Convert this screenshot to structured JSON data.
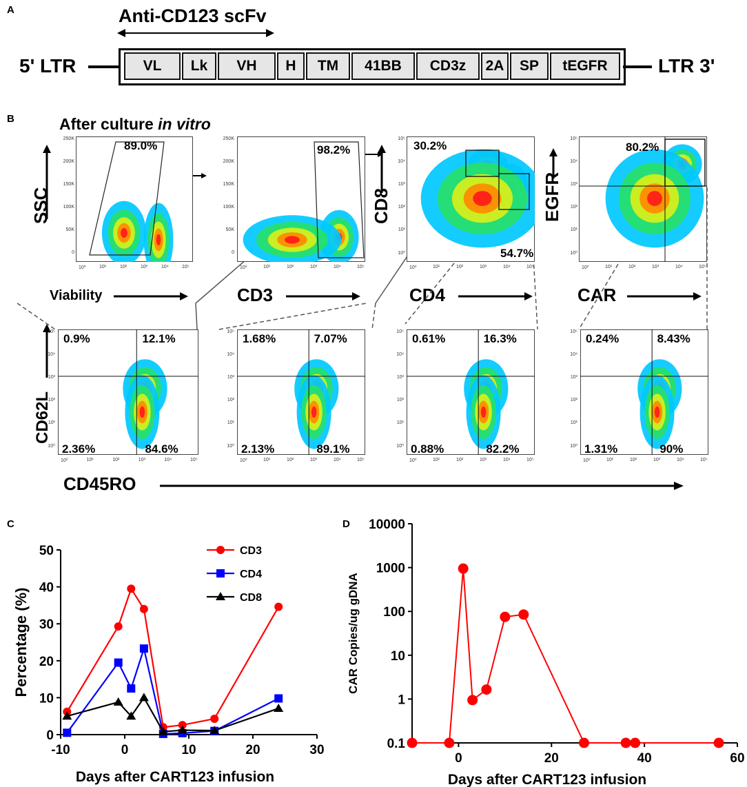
{
  "panelA": {
    "letter": "A",
    "scfv_label": "Anti-CD123 scFv",
    "ltr5": "5' LTR",
    "ltr3": "LTR 3'",
    "segments": [
      "VL",
      "Lk",
      "VH",
      "H",
      "TM",
      "41BB",
      "CD3z",
      "2A",
      "SP",
      "tEGFR"
    ]
  },
  "panelB": {
    "letter": "B",
    "title_prefix": "After culture ",
    "title_italic": "in vitro",
    "top_plots": [
      {
        "ylabel": "SSC",
        "xlabel": "Viability",
        "gate": "89.0%"
      },
      {
        "ylabel": "",
        "xlabel": "CD3",
        "gate": "98.2%"
      },
      {
        "ylabel": "CD8",
        "xlabel": "CD4",
        "gate_tl": "30.2%",
        "gate_br": "54.7%"
      },
      {
        "ylabel": "EGFR",
        "xlabel": "CAR",
        "gate": "80.2%"
      }
    ],
    "bottom_ylabel": "CD62L",
    "bottom_xlabel": "CD45RO",
    "bottom_plots": [
      {
        "tl": "0.9%",
        "tr": "12.1%",
        "bl": "2.36%",
        "br": "84.6%"
      },
      {
        "tl": "1.68%",
        "tr": "7.07%",
        "bl": "2.13%",
        "br": "89.1%"
      },
      {
        "tl": "0.61%",
        "tr": "16.3%",
        "bl": "0.88%",
        "br": "82.2%"
      },
      {
        "tl": "0.24%",
        "tr": "8.43%",
        "bl": "1.31%",
        "br": "90%"
      }
    ],
    "ssc_ticks": [
      "250K",
      "200K",
      "150K",
      "100K",
      "50K",
      "0"
    ],
    "log_ticks": [
      "10⁰",
      "10¹",
      "10²",
      "10³",
      "10⁴",
      "10⁵"
    ]
  },
  "panelC": {
    "letter": "C"
  },
  "panelD": {
    "letter": "D"
  },
  "chart_data": [
    {
      "type": "line",
      "panel": "C",
      "xlabel": "Days after CART123 infusion",
      "ylabel": "Percentage (%)",
      "xlim": [
        -10,
        30
      ],
      "ylim": [
        0,
        50
      ],
      "xticks": [
        -10,
        0,
        10,
        20,
        30
      ],
      "yticks": [
        0,
        10,
        20,
        30,
        40,
        50
      ],
      "legend_position": "top-right",
      "series": [
        {
          "name": "CD3",
          "color": "#ff0000",
          "marker": "circle",
          "x": [
            -9,
            -1,
            1,
            3,
            6,
            9,
            14,
            24
          ],
          "y": [
            6.2,
            29.3,
            39.5,
            34,
            2,
            2.6,
            4.3,
            34.6
          ]
        },
        {
          "name": "CD4",
          "color": "#0000ff",
          "marker": "square",
          "x": [
            -9,
            -1,
            1,
            3,
            6,
            9,
            14,
            24
          ],
          "y": [
            0.5,
            19.5,
            12.5,
            23.3,
            0.2,
            0.4,
            1,
            9.8
          ]
        },
        {
          "name": "CD8",
          "color": "#000000",
          "marker": "triangle",
          "x": [
            -9,
            -1,
            1,
            3,
            6,
            9,
            14,
            24
          ],
          "y": [
            5,
            8.8,
            5,
            10,
            0.8,
            1.2,
            1.1,
            7.1
          ]
        }
      ]
    },
    {
      "type": "line",
      "panel": "D",
      "xlabel": "Days after CART123 infusion",
      "ylabel": "CAR Copies/ug gDNA",
      "xlim": [
        -10,
        60
      ],
      "yscale": "log",
      "ylim": [
        0.1,
        10000
      ],
      "xticks": [
        0,
        20,
        40,
        60
      ],
      "ytick_labels": [
        "0.1",
        "1",
        "10",
        "100",
        "1000",
        "10000"
      ],
      "series": [
        {
          "name": "CAR",
          "color": "#ff0000",
          "marker": "circle",
          "x": [
            -10,
            -2,
            1,
            3,
            6,
            10,
            14,
            27,
            36,
            38,
            56
          ],
          "y": [
            0.1,
            0.1,
            950,
            0.95,
            1.65,
            75,
            85,
            0.1,
            0.1,
            0.1,
            0.1
          ]
        }
      ]
    }
  ]
}
